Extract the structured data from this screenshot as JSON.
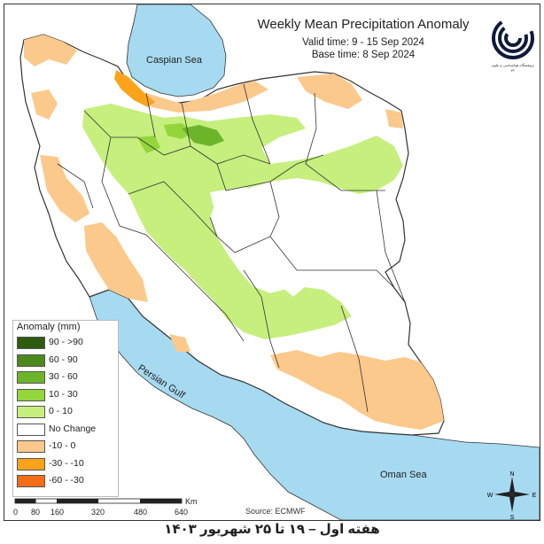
{
  "title": "Weekly Mean Precipitation Anomaly",
  "valid_time": "Valid time: 9 - 15 Sep 2024",
  "base_time": "Base time: 8 Sep 2024",
  "caption": "هفته اول – ۱۹ تا ۲۵ شهریور ۱۴۰۳",
  "source": "Source: ECMWF",
  "logo": {
    "icon": "organization-logo",
    "text": "پژوهشگاه هواشناسی و علوم جو"
  },
  "labels": {
    "caspian": "Caspian Sea",
    "persian_gulf": "Persian Gulf",
    "oman_sea": "Oman Sea"
  },
  "legend": {
    "title": "Anomaly (mm)",
    "items": [
      {
        "label": "90 - >90",
        "color": "#2e5c0e"
      },
      {
        "label": "60 - 90",
        "color": "#4c8a1c"
      },
      {
        "label": "30 - 60",
        "color": "#6cb52a"
      },
      {
        "label": "10 - 30",
        "color": "#93d63c"
      },
      {
        "label": "0 - 10",
        "color": "#c6ef7e"
      },
      {
        "label": "No Change",
        "color": "#ffffff"
      },
      {
        "label": "-10 - 0",
        "color": "#fcc98c"
      },
      {
        "label": "-30 - -10",
        "color": "#fba41a"
      },
      {
        "label": "-60 - -30",
        "color": "#f56d16"
      }
    ]
  },
  "scale": {
    "unit": "Km",
    "ticks": [
      "0",
      "80",
      "160",
      "320",
      "480",
      "640"
    ]
  },
  "compass": {
    "n": "N",
    "s": "S",
    "e": "E",
    "w": "W"
  },
  "colors": {
    "sea": "#a6daf0",
    "land_outside": "#ffffff",
    "border": "#333333"
  }
}
